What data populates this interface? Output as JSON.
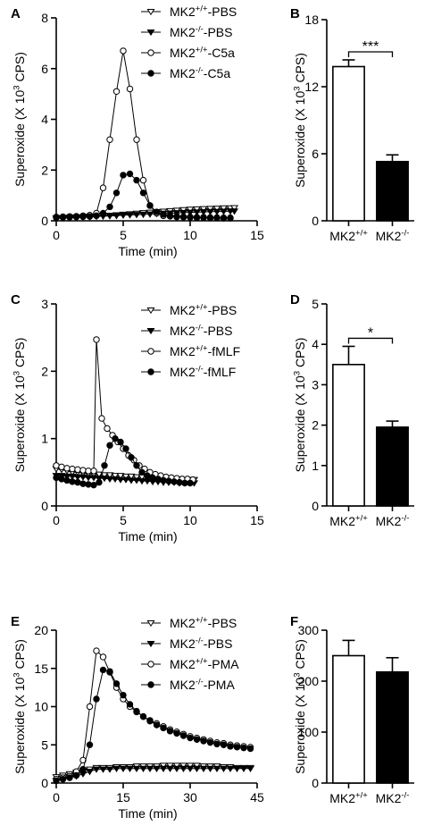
{
  "chart_data": [
    {
      "panel": "A",
      "type": "line",
      "xlabel": "Time (min)",
      "ylabel": "Superoxide (X 10^3 CPS)",
      "xlim": [
        0,
        15
      ],
      "ylim": [
        0,
        8
      ],
      "xticks": [
        0,
        5,
        10,
        15
      ],
      "yticks": [
        0,
        2,
        4,
        6,
        8
      ],
      "legend": "top-right",
      "series": [
        {
          "name": "MK2+/+-PBS",
          "marker": "tri-down-open",
          "x": [
            0,
            0.5,
            1,
            1.5,
            2,
            2.5,
            3,
            3.5,
            4,
            4.5,
            5,
            5.5,
            6,
            6.5,
            7,
            7.5,
            8,
            8.5,
            9,
            9.5,
            10,
            10.5,
            11,
            11.5,
            12,
            12.5,
            13,
            13.3
          ],
          "y": [
            0.1,
            0.12,
            0.13,
            0.14,
            0.15,
            0.17,
            0.18,
            0.2,
            0.21,
            0.23,
            0.25,
            0.27,
            0.29,
            0.31,
            0.33,
            0.35,
            0.37,
            0.39,
            0.41,
            0.43,
            0.45,
            0.46,
            0.47,
            0.48,
            0.49,
            0.5,
            0.5,
            0.51
          ]
        },
        {
          "name": "MK2-/--PBS",
          "marker": "tri-down-filled",
          "x": [
            0,
            0.5,
            1,
            1.5,
            2,
            2.5,
            3,
            3.5,
            4,
            4.5,
            5,
            5.5,
            6,
            6.5,
            7,
            7.5,
            8,
            8.5,
            9,
            9.5,
            10,
            10.5,
            11,
            11.5,
            12,
            12.5,
            13,
            13.3
          ],
          "y": [
            0.1,
            0.11,
            0.12,
            0.13,
            0.14,
            0.15,
            0.17,
            0.18,
            0.19,
            0.2,
            0.22,
            0.23,
            0.24,
            0.25,
            0.26,
            0.28,
            0.29,
            0.3,
            0.31,
            0.32,
            0.33,
            0.34,
            0.35,
            0.36,
            0.36,
            0.37,
            0.38,
            0.38
          ]
        },
        {
          "name": "MK2+/+-C5a",
          "marker": "circle-open",
          "x": [
            0,
            0.5,
            1,
            1.5,
            2,
            2.5,
            3,
            3.5,
            4,
            4.5,
            5,
            5.5,
            6,
            6.5,
            7,
            7.5,
            8,
            8.5,
            9,
            9.5,
            10,
            10.5,
            11,
            11.5,
            12,
            12.5,
            13
          ],
          "y": [
            0.15,
            0.16,
            0.17,
            0.18,
            0.2,
            0.22,
            0.3,
            1.3,
            3.2,
            5.1,
            6.7,
            5.2,
            3.2,
            1.6,
            0.6,
            0.3,
            0.2,
            0.18,
            0.15,
            0.14,
            0.13,
            0.12,
            0.12,
            0.11,
            0.11,
            0.1,
            0.1
          ]
        },
        {
          "name": "MK2-/--C5a",
          "marker": "circle-filled",
          "x": [
            0,
            0.5,
            1,
            1.5,
            2,
            2.5,
            3,
            3.5,
            4,
            4.5,
            5,
            5.5,
            6,
            6.5,
            7,
            7.5,
            8,
            8.5,
            9,
            9.5,
            10,
            10.5,
            11,
            11.5,
            12,
            12.5,
            13
          ],
          "y": [
            0.12,
            0.13,
            0.14,
            0.15,
            0.16,
            0.17,
            0.2,
            0.3,
            0.55,
            1.1,
            1.8,
            1.85,
            1.6,
            1.1,
            0.6,
            0.35,
            0.25,
            0.2,
            0.18,
            0.16,
            0.15,
            0.14,
            0.14,
            0.13,
            0.13,
            0.12,
            0.12
          ]
        }
      ]
    },
    {
      "panel": "B",
      "type": "bar",
      "ylabel": "Superoxide (X 10^3 CPS)",
      "ylim": [
        0,
        18
      ],
      "yticks": [
        0,
        6,
        12,
        18
      ],
      "categories": [
        "MK2+/+",
        "MK2-/-"
      ],
      "values": [
        13.8,
        5.3
      ],
      "errors": [
        0.6,
        0.6
      ],
      "fills": [
        "#ffffff",
        "#000000"
      ],
      "significance": "***"
    },
    {
      "panel": "C",
      "type": "line",
      "xlabel": "Time (min)",
      "ylabel": "Superoxide (X 10^3 CPS)",
      "xlim": [
        0,
        15
      ],
      "ylim": [
        0,
        3
      ],
      "xticks": [
        0,
        5,
        10,
        15
      ],
      "yticks": [
        0,
        1,
        2,
        3
      ],
      "legend": "top-right",
      "series": [
        {
          "name": "MK2+/+-PBS",
          "marker": "tri-down-open",
          "x": [
            0,
            0.4,
            0.8,
            1.2,
            1.6,
            2,
            2.4,
            2.8,
            3.2,
            3.6,
            4,
            4.4,
            4.8,
            5.2,
            5.6,
            6,
            6.4,
            6.8,
            7.2,
            7.6,
            8,
            8.4,
            8.8,
            9.2,
            9.6,
            10,
            10.3
          ],
          "y": [
            0.55,
            0.54,
            0.52,
            0.5,
            0.5,
            0.49,
            0.48,
            0.47,
            0.47,
            0.46,
            0.46,
            0.45,
            0.45,
            0.44,
            0.44,
            0.43,
            0.43,
            0.42,
            0.42,
            0.41,
            0.41,
            0.4,
            0.4,
            0.4,
            0.39,
            0.39,
            0.39
          ]
        },
        {
          "name": "MK2-/--PBS",
          "marker": "tri-down-filled",
          "x": [
            0,
            0.4,
            0.8,
            1.2,
            1.6,
            2,
            2.4,
            2.8,
            3.2,
            3.6,
            4,
            4.4,
            4.8,
            5.2,
            5.6,
            6,
            6.4,
            6.8,
            7.2,
            7.6,
            8,
            8.4,
            8.8,
            9.2,
            9.6,
            10,
            10.3
          ],
          "y": [
            0.45,
            0.45,
            0.44,
            0.44,
            0.43,
            0.43,
            0.42,
            0.42,
            0.41,
            0.41,
            0.4,
            0.4,
            0.39,
            0.39,
            0.38,
            0.38,
            0.37,
            0.37,
            0.36,
            0.36,
            0.35,
            0.35,
            0.35,
            0.34,
            0.34,
            0.34,
            0.34
          ]
        },
        {
          "name": "MK2+/+-fMLF",
          "marker": "circle-open",
          "x": [
            0,
            0.4,
            0.8,
            1.2,
            1.6,
            2,
            2.4,
            2.8,
            3.0,
            3.4,
            3.8,
            4.2,
            4.6,
            5.0,
            5.4,
            5.8,
            6.2,
            6.6,
            7.0,
            7.4,
            7.8,
            8.2,
            8.6,
            9.0,
            9.4,
            9.8,
            10.2
          ],
          "y": [
            0.6,
            0.58,
            0.56,
            0.55,
            0.54,
            0.53,
            0.52,
            0.52,
            2.47,
            1.3,
            1.15,
            1.05,
            0.95,
            0.85,
            0.75,
            0.68,
            0.6,
            0.55,
            0.5,
            0.47,
            0.45,
            0.43,
            0.42,
            0.41,
            0.4,
            0.4,
            0.39
          ]
        },
        {
          "name": "MK2-/--fMLF",
          "marker": "circle-filled",
          "x": [
            0,
            0.4,
            0.8,
            1.2,
            1.6,
            2,
            2.4,
            2.8,
            3.2,
            3.6,
            4.0,
            4.4,
            4.8,
            5.2,
            5.6,
            6.0,
            6.4,
            6.8,
            7.2,
            7.6,
            8.0,
            8.4,
            8.8,
            9.2,
            9.6,
            10.0
          ],
          "y": [
            0.42,
            0.4,
            0.38,
            0.36,
            0.35,
            0.33,
            0.32,
            0.31,
            0.35,
            0.6,
            0.9,
            1.0,
            0.95,
            0.85,
            0.72,
            0.6,
            0.5,
            0.45,
            0.42,
            0.4,
            0.38,
            0.37,
            0.36,
            0.35,
            0.34,
            0.34
          ]
        }
      ]
    },
    {
      "panel": "D",
      "type": "bar",
      "ylabel": "Superoxide (X 10^3 CPS)",
      "ylim": [
        0,
        5
      ],
      "yticks": [
        0,
        1,
        2,
        3,
        4,
        5
      ],
      "categories": [
        "MK2+/+",
        "MK2-/-"
      ],
      "values": [
        3.5,
        1.95
      ],
      "errors": [
        0.45,
        0.15
      ],
      "fills": [
        "#ffffff",
        "#000000"
      ],
      "significance": "*"
    },
    {
      "panel": "E",
      "type": "line",
      "xlabel": "Time (min)",
      "ylabel": "Superoxide (X 10^3 CPS)",
      "xlim": [
        0,
        45
      ],
      "ylim": [
        0,
        20
      ],
      "xticks": [
        0,
        15,
        30,
        45
      ],
      "yticks": [
        0,
        5,
        10,
        15,
        20
      ],
      "legend": "top-right",
      "series": [
        {
          "name": "MK2+/+-PBS",
          "marker": "tri-down-open",
          "x": [
            0,
            1.5,
            3,
            4.5,
            6,
            7.5,
            9,
            10.5,
            12,
            13.5,
            15,
            16.5,
            18,
            19.5,
            21,
            22.5,
            24,
            25.5,
            27,
            28.5,
            30,
            31.5,
            33,
            34.5,
            36,
            37.5,
            39,
            40.5,
            42,
            43.5
          ],
          "y": [
            0.8,
            1.0,
            1.2,
            1.4,
            1.6,
            1.8,
            2.0,
            2.0,
            2.0,
            2.1,
            2.1,
            2.1,
            2.2,
            2.2,
            2.2,
            2.2,
            2.3,
            2.3,
            2.3,
            2.3,
            2.3,
            2.3,
            2.2,
            2.2,
            2.2,
            2.1,
            2.1,
            2.0,
            2.0,
            2.0
          ]
        },
        {
          "name": "MK2-/--PBS",
          "marker": "tri-down-filled",
          "x": [
            0,
            1.5,
            3,
            4.5,
            6,
            7.5,
            9,
            10.5,
            12,
            13.5,
            15,
            16.5,
            18,
            19.5,
            21,
            22.5,
            24,
            25.5,
            27,
            28.5,
            30,
            31.5,
            33,
            34.5,
            36,
            37.5,
            39,
            40.5,
            42,
            43.5
          ],
          "y": [
            0.3,
            0.5,
            0.7,
            0.9,
            1.2,
            1.5,
            1.8,
            1.8,
            1.8,
            1.9,
            1.9,
            1.9,
            1.9,
            1.9,
            1.9,
            1.9,
            1.9,
            1.9,
            1.9,
            1.9,
            1.9,
            1.9,
            1.9,
            1.9,
            1.9,
            1.9,
            1.9,
            1.9,
            1.9,
            1.9
          ]
        },
        {
          "name": "MK2+/+-PMA",
          "marker": "circle-open",
          "x": [
            0,
            1.5,
            3,
            4.5,
            6,
            7.5,
            9,
            10.5,
            12,
            13.5,
            15,
            16.5,
            18,
            19.5,
            21,
            22.5,
            24,
            25.5,
            27,
            28.5,
            30,
            31.5,
            33,
            34.5,
            36,
            37.5,
            39,
            40.5,
            42,
            43.5
          ],
          "y": [
            0.5,
            0.7,
            0.9,
            1.5,
            3.0,
            10.0,
            17.3,
            16.5,
            14.5,
            12.5,
            11.0,
            10.0,
            9.3,
            8.7,
            8.2,
            7.8,
            7.4,
            7.0,
            6.7,
            6.4,
            6.1,
            5.9,
            5.7,
            5.5,
            5.3,
            5.2,
            5.0,
            4.9,
            4.8,
            4.7
          ]
        },
        {
          "name": "MK2-/--PMA",
          "marker": "circle-filled",
          "x": [
            0,
            1.5,
            3,
            4.5,
            6,
            7.5,
            9,
            10.5,
            12,
            13.5,
            15,
            16.5,
            18,
            19.5,
            21,
            22.5,
            24,
            25.5,
            27,
            28.5,
            30,
            31.5,
            33,
            34.5,
            36,
            37.5,
            39,
            40.5,
            42,
            43.5
          ],
          "y": [
            0.3,
            0.5,
            0.7,
            1.0,
            1.8,
            5.0,
            11.0,
            14.8,
            14.6,
            13.0,
            11.5,
            10.3,
            9.4,
            8.7,
            8.1,
            7.6,
            7.2,
            6.8,
            6.5,
            6.2,
            5.9,
            5.7,
            5.5,
            5.3,
            5.1,
            5.0,
            4.8,
            4.7,
            4.6,
            4.5
          ]
        }
      ]
    },
    {
      "panel": "F",
      "type": "bar",
      "ylabel": "Superoxide (X 10^3 CPS)",
      "ylim": [
        0,
        300
      ],
      "yticks": [
        0,
        100,
        200,
        300
      ],
      "categories": [
        "MK2+/+",
        "MK2-/-"
      ],
      "values": [
        250,
        218
      ],
      "errors": [
        30,
        28
      ],
      "fills": [
        "#ffffff",
        "#000000"
      ],
      "significance": ""
    }
  ]
}
